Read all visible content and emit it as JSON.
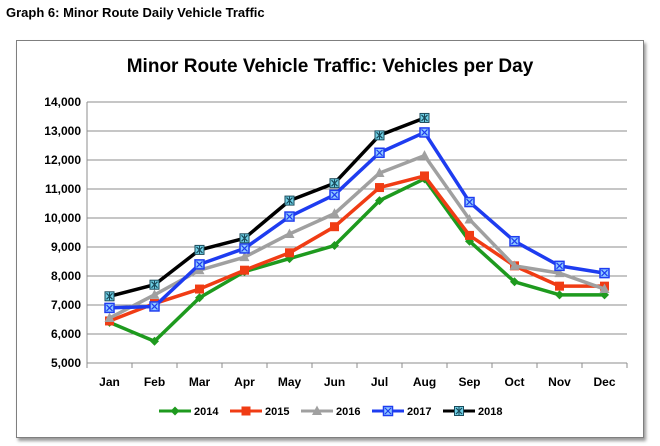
{
  "page": {
    "heading": "Graph 6:  Minor Route Daily Vehicle Traffic"
  },
  "chart_data": {
    "type": "line",
    "title": "Minor Route Vehicle Traffic:  Vehicles per Day",
    "xlabel": "",
    "ylabel": "",
    "categories": [
      "Jan",
      "Feb",
      "Mar",
      "Apr",
      "May",
      "Jun",
      "Jul",
      "Aug",
      "Sep",
      "Oct",
      "Nov",
      "Dec"
    ],
    "ylim": [
      5000,
      14000
    ],
    "yticks": [
      5000,
      6000,
      7000,
      8000,
      9000,
      10000,
      11000,
      12000,
      13000,
      14000
    ],
    "ytick_labels": [
      "5,000",
      "6,000",
      "7,000",
      "8,000",
      "9,000",
      "10,000",
      "11,000",
      "12,000",
      "13,000",
      "14,000"
    ],
    "grid": "horizontal",
    "legend_position": "bottom",
    "series": [
      {
        "name": "2014",
        "color": "#1e9a1e",
        "marker": "diamond",
        "values": [
          6400,
          5750,
          7250,
          8150,
          8600,
          9050,
          10600,
          11350,
          9200,
          7800,
          7350,
          7350
        ]
      },
      {
        "name": "2015",
        "color": "#f03c14",
        "marker": "square",
        "values": [
          6450,
          7050,
          7550,
          8200,
          8800,
          9700,
          11050,
          11450,
          9400,
          8350,
          7650,
          7650
        ]
      },
      {
        "name": "2016",
        "color": "#a0a0a0",
        "marker": "triangle",
        "values": [
          6550,
          7350,
          8200,
          8650,
          9450,
          10150,
          11550,
          12150,
          9950,
          8350,
          8100,
          7550
        ]
      },
      {
        "name": "2017",
        "color": "#1e3cf0",
        "marker": "x-square",
        "values": [
          6900,
          6950,
          8400,
          8950,
          10050,
          10800,
          12250,
          12950,
          10550,
          9200,
          8350,
          8100
        ]
      },
      {
        "name": "2018",
        "color": "#000000",
        "marker": "star",
        "values": [
          7300,
          7700,
          8900,
          9300,
          10600,
          11200,
          12850,
          13450,
          null,
          null,
          null,
          null
        ]
      }
    ]
  }
}
